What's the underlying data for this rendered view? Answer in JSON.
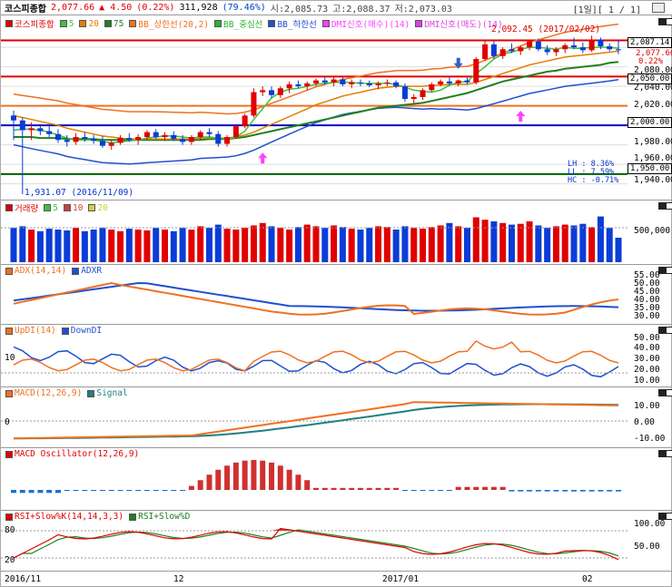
{
  "header": {
    "name": "코스피종합",
    "price": "2,077.66",
    "change": "▲ 4.50",
    "change_pct": "(0.22%)",
    "volume": "311,928",
    "volume_pct": "(79.46%)",
    "open": "시:2,085.73",
    "high": "고:2,088.37",
    "low": "저:2,073.03",
    "period": "[1일][ 1 / 1]"
  },
  "colors": {
    "up": "#e00000",
    "down": "#0a3cd8",
    "ma5": "#40c040",
    "ma20": "#e08000",
    "ma75": "#208020"
  },
  "legends": {
    "price": [
      {
        "label": "코스피종합",
        "color": "#e00000"
      },
      {
        "label": "5",
        "color": "#40c040"
      },
      {
        "label": "20",
        "color": "#e08000"
      },
      {
        "label": "75",
        "color": "#208020"
      },
      {
        "label": "BB_상한선(20,2)",
        "color": "#f07020"
      },
      {
        "label": "BB_중심선",
        "color": "#30b030"
      },
      {
        "label": "BB_하한선",
        "color": "#2050d0"
      },
      {
        "label": "DMI신호(매수)(14)",
        "color": "#ff40ff"
      },
      {
        "label": "DMI신호(매도)(14)",
        "color": "#e040e0"
      }
    ],
    "volume": [
      {
        "label": "거래량",
        "color": "#e00000"
      },
      {
        "label": "5",
        "color": "#40c040"
      },
      {
        "label": "10",
        "color": "#d04040"
      },
      {
        "label": "20",
        "color": "#d0d040"
      }
    ],
    "adx": [
      {
        "label": "ADX(14,14)",
        "color": "#f07020"
      },
      {
        "label": "ADXR",
        "color": "#2050d0"
      }
    ],
    "dmi": [
      {
        "label": "UpDI(14)",
        "color": "#f07020"
      },
      {
        "label": "DownDI",
        "color": "#2050d0"
      }
    ],
    "macd": [
      {
        "label": "MACD(12,26,9)",
        "color": "#f07020"
      },
      {
        "label": "Signal",
        "color": "#208080"
      }
    ],
    "osc": [
      {
        "label": "MACD Oscillator(12,26,9)",
        "color": "#e00000"
      }
    ],
    "rsi": [
      {
        "label": "RSI+Slow%K(14,14,3,3)",
        "color": "#e00000"
      },
      {
        "label": "RSI+Slow%D",
        "color": "#208020"
      }
    ]
  },
  "price_panel": {
    "annotation_high": "2,092.45 (2017/02/02)",
    "annotation_low": "1,931.07 (2016/11/09)",
    "tag_current": "2,087.14",
    "tag_last": "2,077.66",
    "tag_pct": "0.22%",
    "tag_2050": "2,050.00",
    "tag_2000": "2,000.00",
    "tag_1950": "1,950.00",
    "axis": [
      "2,080.00",
      "2,060.00",
      "2,040.00",
      "2,020.00",
      "1,980.00",
      "1,960.00",
      "1,940.00"
    ],
    "stats": [
      "LH : 8.36%",
      "LL : 7.59%",
      "HC : -0.71%"
    ]
  },
  "volume_panel": {
    "axis": [
      "500,000"
    ]
  },
  "adx_panel": {
    "axis": [
      "55.00",
      "50.00",
      "45.00",
      "40.00",
      "35.00",
      "30.00"
    ]
  },
  "dmi_panel": {
    "axis": [
      "50.00",
      "40.00",
      "30.00",
      "20.00",
      "10.00"
    ],
    "ref": "10"
  },
  "macd_panel": {
    "axis": [
      "10.00",
      "0.00",
      "-10.00"
    ],
    "ref": "0"
  },
  "rsi_panel": {
    "axis": [
      "100.00",
      "50.00"
    ],
    "ref_high": "80",
    "ref_low": "20"
  },
  "x_axis": [
    "2016/11",
    "12",
    "2017/01",
    "02"
  ],
  "chart_data": {
    "type": "candlestick",
    "title": "코스피종합",
    "ylim": [
      1935,
      2095
    ],
    "x_labels": [
      "2016/11",
      "12",
      "2017/01",
      "02"
    ],
    "annotations": {
      "high": 2092.45,
      "high_date": "2017/02/02",
      "low": 1931.07,
      "low_date": "2016/11/09"
    },
    "ref_lines": [
      2087.14,
      2050,
      2000,
      1950
    ],
    "candles": [
      [
        2010,
        2015,
        1985,
        2005
      ],
      [
        2005,
        2008,
        1931,
        1995
      ],
      [
        1995,
        2003,
        1985,
        1997
      ],
      [
        1997,
        2000,
        1990,
        1994
      ],
      [
        1994,
        2000,
        1988,
        1991
      ],
      [
        1991,
        1996,
        1982,
        1985
      ],
      [
        1985,
        1990,
        1978,
        1983
      ],
      [
        1983,
        1992,
        1980,
        1988
      ],
      [
        1988,
        1993,
        1983,
        1986
      ],
      [
        1986,
        1990,
        1981,
        1984
      ],
      [
        1984,
        1989,
        1977,
        1979
      ],
      [
        1979,
        1985,
        1975,
        1982
      ],
      [
        1982,
        1990,
        1980,
        1987
      ],
      [
        1987,
        1992,
        1983,
        1985
      ],
      [
        1985,
        1991,
        1980,
        1988
      ],
      [
        1988,
        1995,
        1985,
        1993
      ],
      [
        1993,
        1996,
        1986,
        1988
      ],
      [
        1988,
        1993,
        1984,
        1990
      ],
      [
        1990,
        1994,
        1984,
        1986
      ],
      [
        1986,
        1990,
        1980,
        1983
      ],
      [
        1983,
        1990,
        1980,
        1988
      ],
      [
        1988,
        1995,
        1985,
        1993
      ],
      [
        1993,
        1997,
        1988,
        1991
      ],
      [
        1991,
        1994,
        1978,
        1981
      ],
      [
        1981,
        1990,
        1978,
        1988
      ],
      [
        1988,
        2000,
        1986,
        1999
      ],
      [
        1999,
        2012,
        1997,
        2010
      ],
      [
        2010,
        2038,
        2008,
        2034
      ],
      [
        2034,
        2040,
        2030,
        2036
      ],
      [
        2036,
        2040,
        2028,
        2031
      ],
      [
        2031,
        2040,
        2028,
        2038
      ],
      [
        2038,
        2045,
        2033,
        2042
      ],
      [
        2042,
        2046,
        2038,
        2040
      ],
      [
        2040,
        2045,
        2036,
        2043
      ],
      [
        2043,
        2048,
        2040,
        2046
      ],
      [
        2046,
        2049,
        2042,
        2044
      ],
      [
        2044,
        2050,
        2040,
        2047
      ],
      [
        2047,
        2049,
        2040,
        2042
      ],
      [
        2042,
        2047,
        2038,
        2044
      ],
      [
        2044,
        2047,
        2040,
        2043
      ],
      [
        2043,
        2046,
        2039,
        2041
      ],
      [
        2041,
        2045,
        2037,
        2043
      ],
      [
        2043,
        2047,
        2040,
        2044
      ],
      [
        2044,
        2046,
        2038,
        2040
      ],
      [
        2040,
        2043,
        2024,
        2027
      ],
      [
        2027,
        2032,
        2022,
        2029
      ],
      [
        2029,
        2038,
        2026,
        2036
      ],
      [
        2036,
        2044,
        2034,
        2042
      ],
      [
        2042,
        2047,
        2040,
        2045
      ],
      [
        2045,
        2049,
        2041,
        2043
      ],
      [
        2043,
        2047,
        2040,
        2046
      ],
      [
        2046,
        2049,
        2042,
        2044
      ],
      [
        2044,
        2070,
        2042,
        2068
      ],
      [
        2068,
        2088,
        2066,
        2083
      ],
      [
        2083,
        2086,
        2068,
        2071
      ],
      [
        2071,
        2080,
        2068,
        2078
      ],
      [
        2078,
        2084,
        2074,
        2076
      ],
      [
        2076,
        2082,
        2072,
        2080
      ],
      [
        2080,
        2088,
        2077,
        2086
      ],
      [
        2086,
        2089,
        2076,
        2078
      ],
      [
        2078,
        2082,
        2072,
        2075
      ],
      [
        2075,
        2080,
        2071,
        2078
      ],
      [
        2078,
        2084,
        2074,
        2082
      ],
      [
        2082,
        2090,
        2078,
        2080
      ],
      [
        2080,
        2085,
        2074,
        2077
      ],
      [
        2077,
        2092,
        2075,
        2088
      ],
      [
        2088,
        2090,
        2078,
        2081
      ],
      [
        2081,
        2084,
        2076,
        2078
      ],
      [
        2078,
        2088,
        2073,
        2077
      ]
    ],
    "series": [
      {
        "name": "5",
        "values": [
          1995,
          1996,
          1996,
          1995,
          1993,
          1990,
          1987,
          1985,
          1985,
          1985,
          1983,
          1982,
          1983,
          1984,
          1985,
          1987,
          1988,
          1989,
          1989,
          1988,
          1987,
          1988,
          1988,
          1987,
          1986,
          1988,
          1994,
          2006,
          2017,
          2028,
          2034,
          2037,
          2038,
          2040,
          2042,
          2043,
          2044,
          2044,
          2044,
          2043,
          2043,
          2043,
          2043,
          2042,
          2039,
          2036,
          2035,
          2034,
          2036,
          2041,
          2044,
          2045,
          2053,
          2060,
          2068,
          2073,
          2075,
          2078,
          2080,
          2080,
          2079,
          2078,
          2080,
          2079,
          2079,
          2080,
          2080,
          2080,
          2079
        ]
      },
      {
        "name": "20",
        "values": [
          2010,
          2008,
          2006,
          2004,
          2002,
          2000,
          1997,
          1995,
          1993,
          1991,
          1989,
          1988,
          1987,
          1986,
          1986,
          1986,
          1986,
          1986,
          1986,
          1986,
          1986,
          1987,
          1987,
          1987,
          1987,
          1988,
          1990,
          1993,
          1997,
          2001,
          2005,
          2009,
          2013,
          2017,
          2021,
          2024,
          2027,
          2030,
          2032,
          2034,
          2036,
          2038,
          2039,
          2040,
          2040,
          2040,
          2040,
          2041,
          2041,
          2042,
          2042,
          2042,
          2044,
          2047,
          2050,
          2053,
          2056,
          2059,
          2062,
          2064,
          2066,
          2068,
          2070,
          2071,
          2072,
          2073,
          2074,
          2075,
          2076
        ]
      },
      {
        "name": "75",
        "values": [
          1988,
          1988,
          1988,
          1987,
          1987,
          1987,
          1986,
          1986,
          1986,
          1986,
          1985,
          1985,
          1985,
          1985,
          1985,
          1985,
          1985,
          1985,
          1985,
          1985,
          1985,
          1985,
          1986,
          1986,
          1986,
          1987,
          1988,
          1990,
          1992,
          1994,
          1996,
          1998,
          2000,
          2002,
          2004,
          2006,
          2008,
          2010,
          2012,
          2014,
          2016,
          2018,
          2019,
          2020,
          2021,
          2022,
          2023,
          2025,
          2027,
          2029,
          2031,
          2033,
          2036,
          2039,
          2042,
          2045,
          2047,
          2049,
          2051,
          2053,
          2055,
          2056,
          2058,
          2059,
          2060,
          2061,
          2062,
          2064,
          2065
        ]
      }
    ]
  }
}
